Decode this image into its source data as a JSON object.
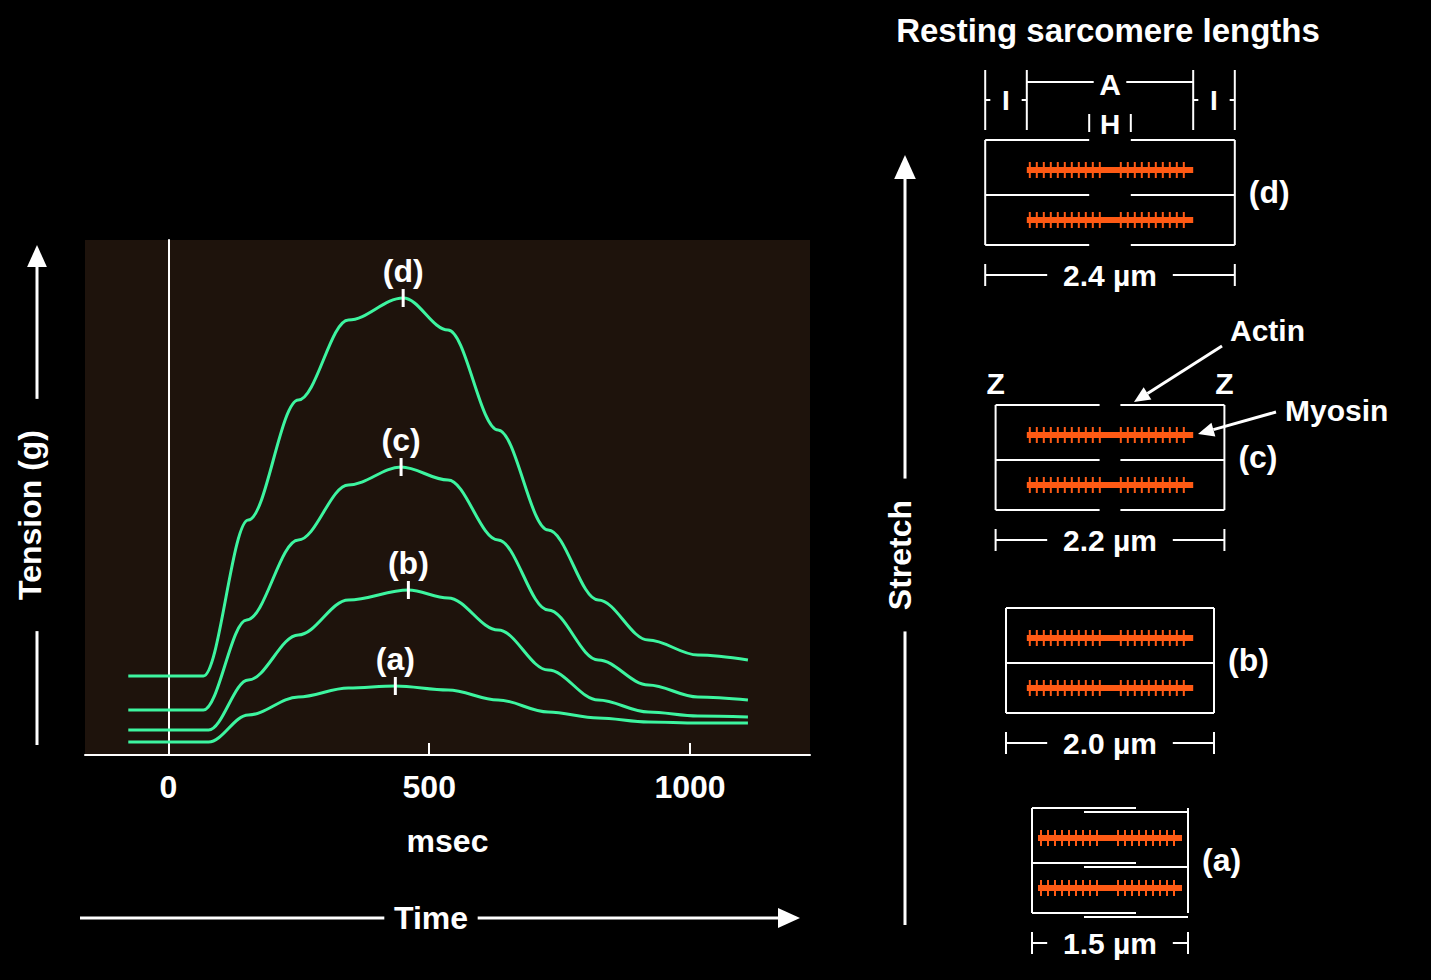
{
  "chart_data": {
    "type": "line",
    "x_label": "msec",
    "y_label": "Tension (g)",
    "x_arrow_label": "Time",
    "xlim": [
      -160,
      1230
    ],
    "xticks": [
      0,
      500,
      1000
    ],
    "ylim": [
      0,
      515
    ],
    "tick_labels": "x",
    "grid": false,
    "series": [
      {
        "name": "(d)",
        "color": "#3df5a0",
        "x": [
          -77,
          67,
          153,
          249,
          345,
          450,
          536,
          632,
          728,
          824,
          920,
          1015,
          1111
        ],
        "values": [
          79,
          79,
          235,
          355,
          435,
          457,
          425,
          325,
          225,
          155,
          115,
          100,
          95
        ]
      },
      {
        "name": "(c)",
        "color": "#3df5a0",
        "x": [
          -77,
          67,
          150,
          249,
          345,
          446,
          536,
          632,
          728,
          824,
          920,
          1015,
          1111
        ],
        "values": [
          45,
          45,
          135,
          215,
          270,
          288,
          275,
          215,
          145,
          95,
          70,
          58,
          55
        ]
      },
      {
        "name": "(b)",
        "color": "#3df5a0",
        "x": [
          -77,
          77,
          153,
          249,
          345,
          460,
          536,
          632,
          728,
          824,
          920,
          1015,
          1111
        ],
        "values": [
          25,
          25,
          75,
          120,
          155,
          165,
          157,
          125,
          85,
          55,
          43,
          39,
          38
        ]
      },
      {
        "name": "(a)",
        "color": "#3df5a0",
        "x": [
          -77,
          77,
          153,
          249,
          345,
          435,
          536,
          632,
          728,
          824,
          920,
          1015,
          1111
        ],
        "values": [
          13,
          13,
          40,
          58,
          67,
          69,
          65,
          55,
          43,
          37,
          33,
          32,
          32
        ]
      }
    ]
  },
  "diagram": {
    "title": "Resting sarcomere lengths",
    "axis_label": "Stretch",
    "band_labels": [
      "I",
      "A",
      "H",
      "I"
    ],
    "z_labels": [
      "Z",
      "Z"
    ],
    "actin_label": "Actin",
    "myosin_label": "Myosin",
    "sarcomeres": [
      {
        "label": "(d)",
        "length": 2.4,
        "length_label": "2.4 µm"
      },
      {
        "label": "(c)",
        "length": 2.2,
        "length_label": "2.2 µm"
      },
      {
        "label": "(b)",
        "length": 2.0,
        "length_label": "2.0 µm"
      },
      {
        "label": "(a)",
        "length": 1.5,
        "length_label": "1.5 µm"
      }
    ]
  }
}
